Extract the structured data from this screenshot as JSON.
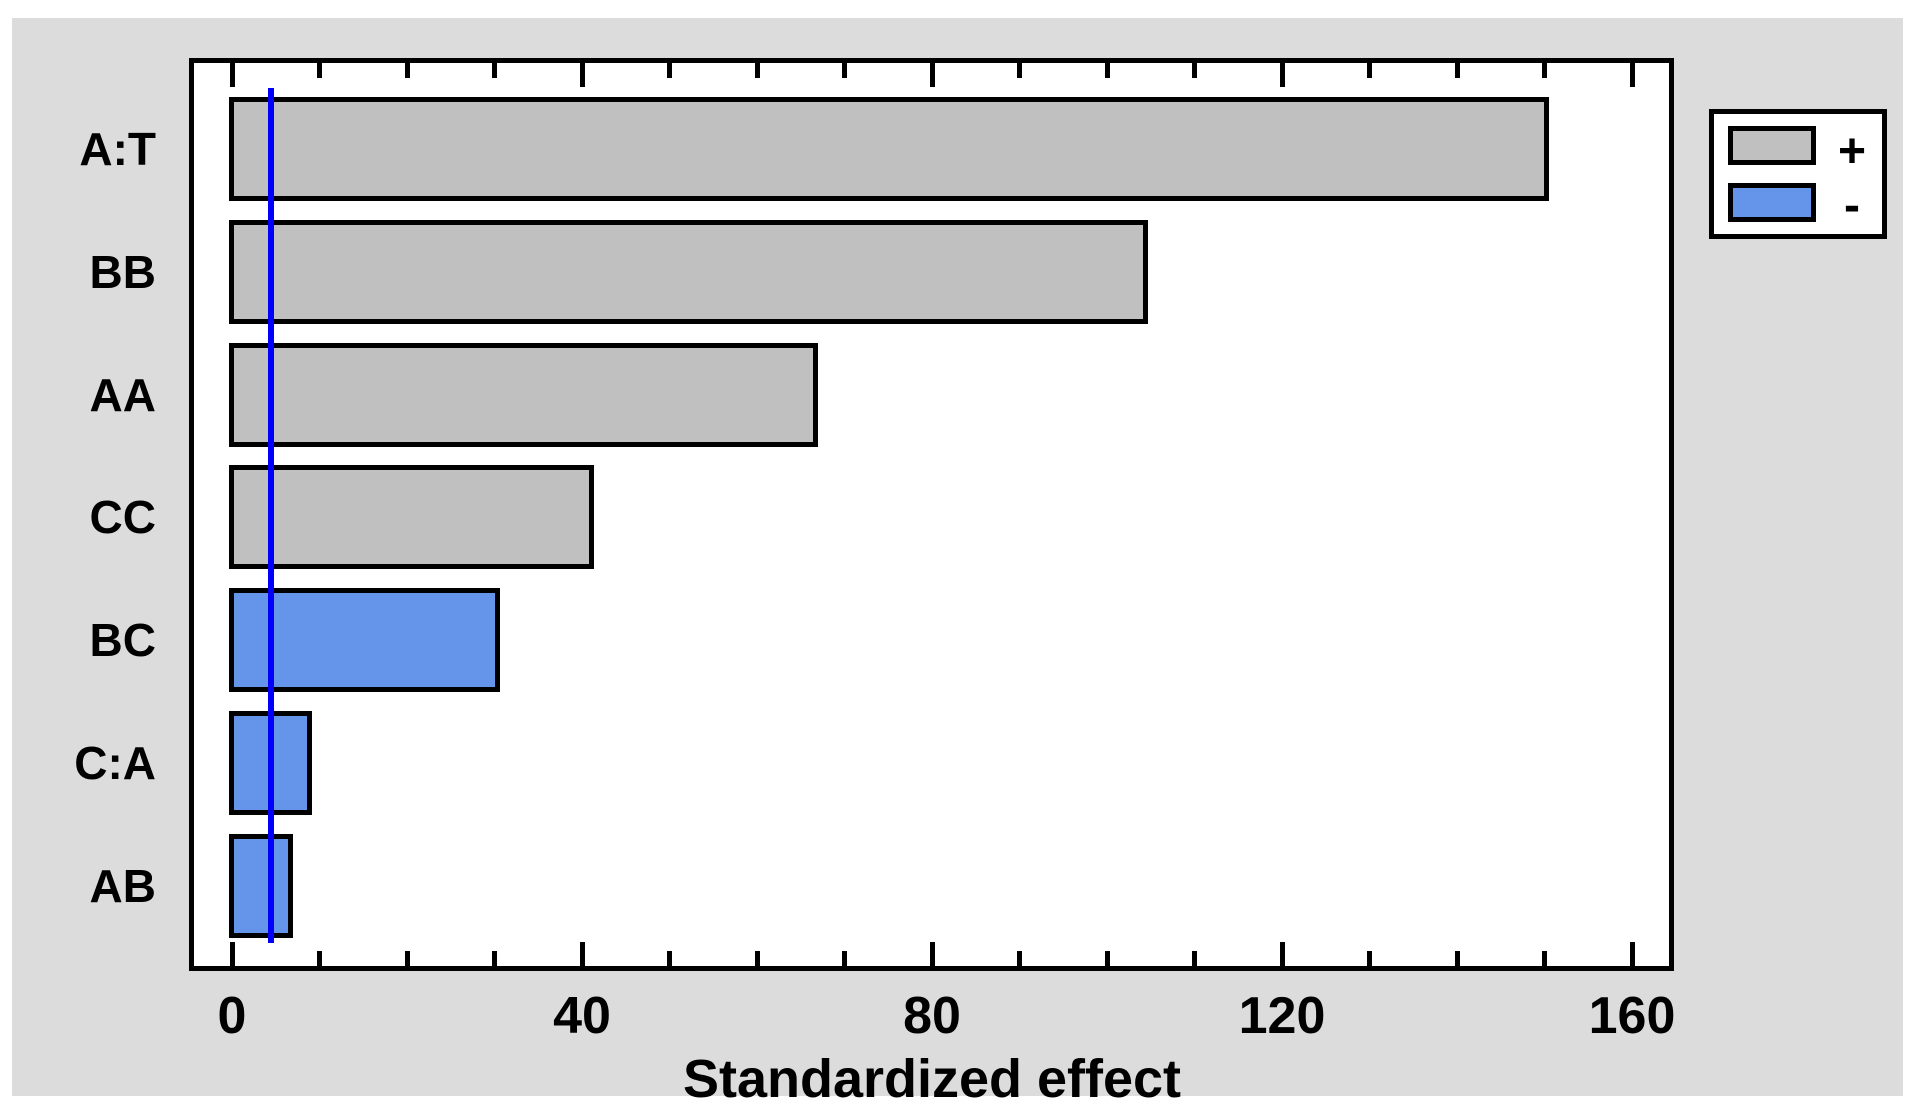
{
  "page": {
    "background_color": "#ffffff",
    "panel_color": "#dcdcdc"
  },
  "chart_data": {
    "type": "bar",
    "orientation": "horizontal",
    "title": "",
    "xlabel": "Standardized effect",
    "ylabel": "",
    "categories": [
      "A:T",
      "BB",
      "AA",
      "CC",
      "BC",
      "C:A",
      "AB"
    ],
    "values": [
      150.3,
      104.5,
      66.7,
      41.1,
      30.4,
      8.9,
      6.7
    ],
    "signs": [
      "positive",
      "positive",
      "positive",
      "positive",
      "negative",
      "negative",
      "negative"
    ],
    "xlim": [
      -4.8,
      164.3
    ],
    "x_ticks_major": [
      0,
      40,
      80,
      120,
      160
    ],
    "x_tick_minor_step": 10,
    "reference_line_x": 4.5,
    "grid": false,
    "legend_position": "outside-top-right",
    "legend": [
      {
        "label": "+",
        "color": "#c0c0c0",
        "meaning": "positive effect"
      },
      {
        "label": "-",
        "color": "#6495ea",
        "meaning": "negative effect"
      }
    ],
    "colors": {
      "positive_bar": "#c0c0c0",
      "negative_bar": "#6495ea",
      "bar_border": "#000000",
      "reference_line": "#0000fa",
      "frame": "#000000",
      "plot_background": "#ffffff"
    }
  }
}
